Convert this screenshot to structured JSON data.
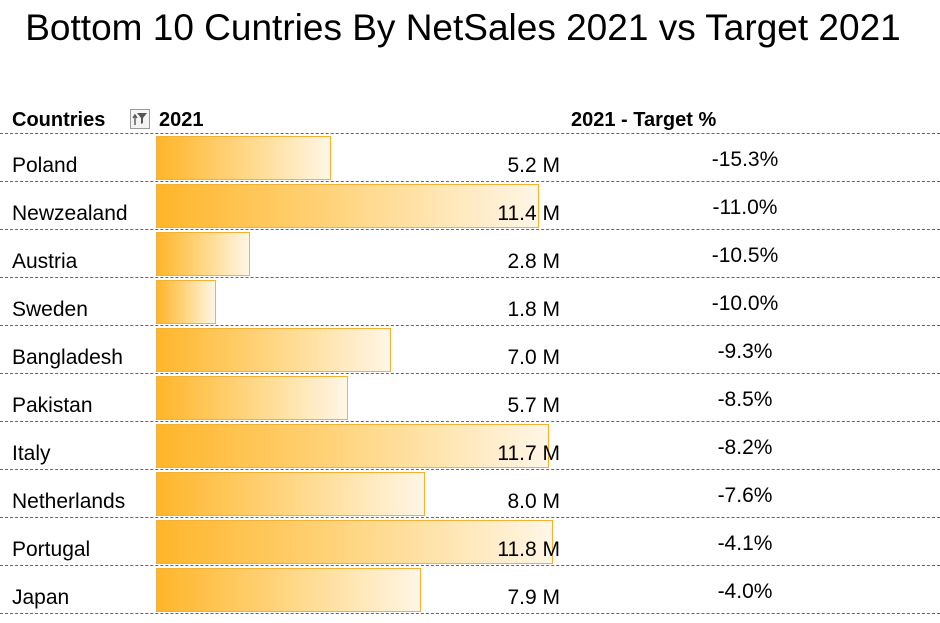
{
  "title": "Bottom 10 Cuntries By NetSales 2021 vs Target 2021",
  "headers": {
    "countries": "Countries",
    "year": "2021",
    "target_pct": "2021 - Target %"
  },
  "icons": {
    "filter": "filter-sort-icon"
  },
  "chart_data": {
    "type": "table",
    "title": "Bottom 10 Cuntries By NetSales 2021 vs Target 2021",
    "columns": [
      "Countries",
      "2021",
      "2021 - Target %"
    ],
    "bar_color": "#ffb52a",
    "bar_scale_max": 12.2,
    "rows": [
      {
        "country": "Poland",
        "value": 5.2,
        "value_label": "5.2 M",
        "target_pct": "-15.3%"
      },
      {
        "country": "Newzealand",
        "value": 11.4,
        "value_label": "11.4 M",
        "target_pct": "-11.0%"
      },
      {
        "country": "Austria",
        "value": 2.8,
        "value_label": "2.8 M",
        "target_pct": "-10.5%"
      },
      {
        "country": "Sweden",
        "value": 1.8,
        "value_label": "1.8 M",
        "target_pct": "-10.0%"
      },
      {
        "country": "Bangladesh",
        "value": 7.0,
        "value_label": "7.0 M",
        "target_pct": "-9.3%"
      },
      {
        "country": "Pakistan",
        "value": 5.7,
        "value_label": "5.7 M",
        "target_pct": "-8.5%"
      },
      {
        "country": "Italy",
        "value": 11.7,
        "value_label": "11.7 M",
        "target_pct": "-8.2%"
      },
      {
        "country": "Netherlands",
        "value": 8.0,
        "value_label": "8.0 M",
        "target_pct": "-7.6%"
      },
      {
        "country": "Portugal",
        "value": 11.8,
        "value_label": "11.8 M",
        "target_pct": "-4.1%"
      },
      {
        "country": "Japan",
        "value": 7.9,
        "value_label": "7.9 M",
        "target_pct": "-4.0%"
      }
    ]
  }
}
